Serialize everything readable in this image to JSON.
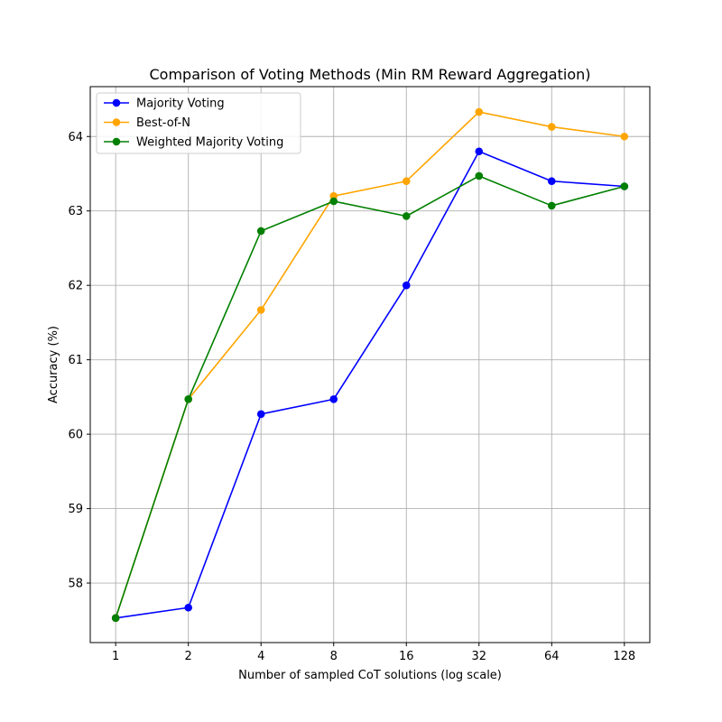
{
  "chart_data": {
    "type": "line",
    "title": "Comparison of Voting Methods (Min RM Reward Aggregation)",
    "xlabel": "Number of sampled CoT solutions (log scale)",
    "ylabel": "Accuracy (%)",
    "x": [
      1,
      2,
      4,
      8,
      16,
      32,
      64,
      128
    ],
    "x_tick_labels": [
      "1",
      "2",
      "4",
      "8",
      "16",
      "32",
      "64",
      "128"
    ],
    "x_scale": "log2",
    "y_ticks": [
      58,
      59,
      60,
      61,
      62,
      63,
      64
    ],
    "y_tick_labels": [
      "58",
      "59",
      "60",
      "61",
      "62",
      "63",
      "64"
    ],
    "ylim": [
      57.2,
      64.67
    ],
    "grid": true,
    "legend_position": "top-left",
    "series": [
      {
        "name": "Majority Voting",
        "color": "#0000ff",
        "values": [
          57.53,
          57.67,
          60.27,
          60.47,
          62.0,
          63.8,
          63.4,
          63.33
        ]
      },
      {
        "name": "Best-of-N",
        "color": "#ffa500",
        "values": [
          57.53,
          60.47,
          61.67,
          63.2,
          63.4,
          64.33,
          64.13,
          64.0
        ]
      },
      {
        "name": "Weighted Majority Voting",
        "color": "#008000",
        "values": [
          57.53,
          60.47,
          62.73,
          63.13,
          62.93,
          63.47,
          63.07,
          63.33
        ]
      }
    ]
  }
}
